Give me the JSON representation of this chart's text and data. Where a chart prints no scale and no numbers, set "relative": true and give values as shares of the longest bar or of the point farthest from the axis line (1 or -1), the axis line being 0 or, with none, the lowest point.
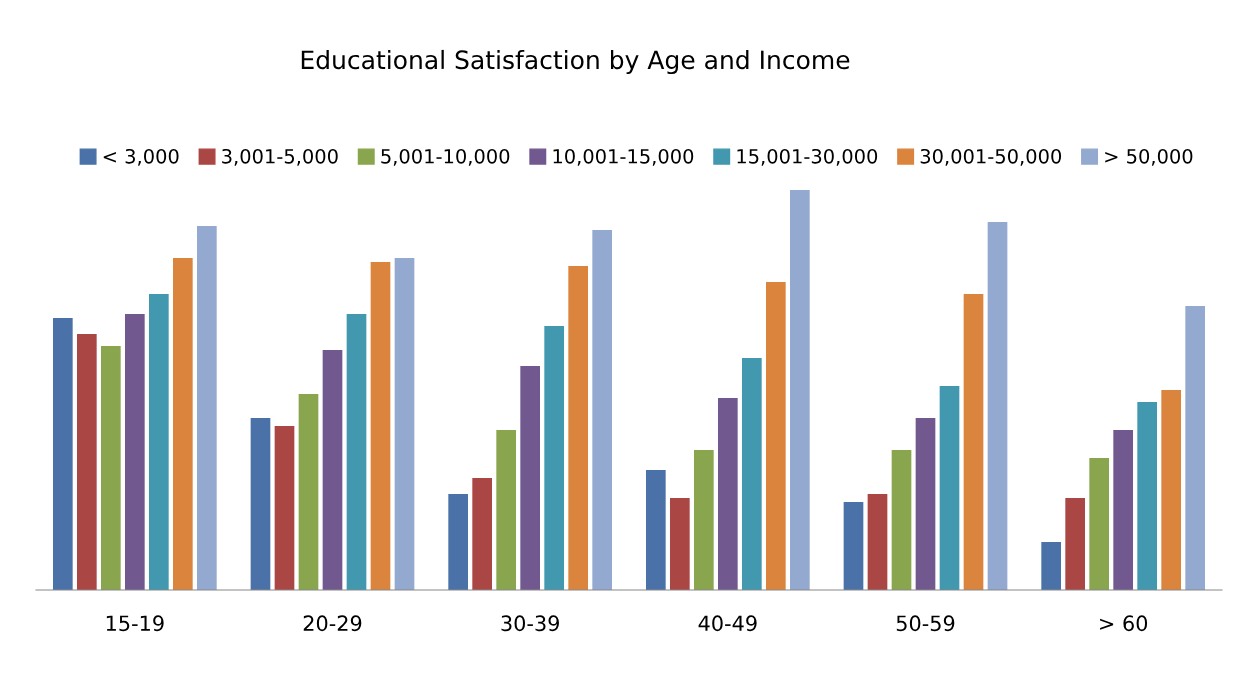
{
  "chart_data": {
    "type": "bar",
    "title": "Educational Satisfaction by Age and Income",
    "relative": true,
    "legend": "top",
    "grid": false,
    "categories": [
      "15-19",
      "20-29",
      "30-39",
      "40-49",
      "50-59",
      "> 60"
    ],
    "series": [
      {
        "name": "< 3,000",
        "color": "#4a72a8",
        "values": [
          0.68,
          0.43,
          0.24,
          0.3,
          0.22,
          0.12
        ]
      },
      {
        "name": "3,001-5,000",
        "color": "#aa4643",
        "values": [
          0.64,
          0.41,
          0.28,
          0.23,
          0.24,
          0.23
        ]
      },
      {
        "name": "5,001-10,000",
        "color": "#89a54e",
        "values": [
          0.61,
          0.49,
          0.4,
          0.35,
          0.35,
          0.33
        ]
      },
      {
        "name": "10,001-15,000",
        "color": "#71588f",
        "values": [
          0.69,
          0.6,
          0.56,
          0.48,
          0.43,
          0.4
        ]
      },
      {
        "name": "15,001-30,000",
        "color": "#4198af",
        "values": [
          0.74,
          0.69,
          0.66,
          0.58,
          0.51,
          0.47
        ]
      },
      {
        "name": "30,001-50,000",
        "color": "#db843d",
        "values": [
          0.83,
          0.82,
          0.81,
          0.77,
          0.74,
          0.5
        ]
      },
      {
        "name": "> 50,000",
        "color": "#93a9cf",
        "values": [
          0.91,
          0.83,
          0.9,
          1,
          0.92,
          0.71
        ]
      }
    ]
  }
}
